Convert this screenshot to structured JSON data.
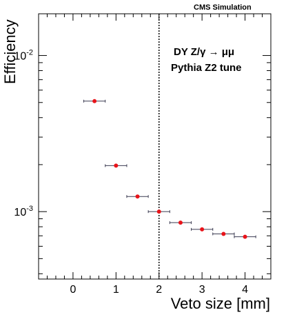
{
  "header": {
    "label": "CMS Simulation"
  },
  "chart_data": {
    "type": "scatter",
    "xlabel": "Veto size [mm]",
    "ylabel": "Efficiency",
    "xlim": [
      -0.8,
      4.6
    ],
    "ylim": [
      0.00037,
      0.0185
    ],
    "y_scale": "log",
    "grid": false,
    "x_ticks": [
      0,
      1,
      2,
      3,
      4
    ],
    "x_tick_labels": [
      "0",
      "1",
      "2",
      "3",
      "4"
    ],
    "y_major_ticks": [
      0.001,
      0.01
    ],
    "y_tick_labels": [
      {
        "base": "10",
        "exp": "-3"
      },
      {
        "base": "10",
        "exp": "-2"
      }
    ],
    "points": [
      {
        "x": 0.5,
        "y": 0.0051,
        "xerr": 0.25
      },
      {
        "x": 1.0,
        "y": 0.00197,
        "xerr": 0.25
      },
      {
        "x": 1.5,
        "y": 0.00125,
        "xerr": 0.25
      },
      {
        "x": 2.0,
        "y": 0.001,
        "xerr": 0.25
      },
      {
        "x": 2.5,
        "y": 0.00085,
        "xerr": 0.25
      },
      {
        "x": 3.0,
        "y": 0.00077,
        "xerr": 0.25
      },
      {
        "x": 3.5,
        "y": 0.00072,
        "xerr": 0.25
      },
      {
        "x": 4.0,
        "y": 0.00069,
        "xerr": 0.25
      }
    ],
    "vertical_line": {
      "x": 2.0,
      "style": "dashed"
    },
    "annotations": [
      "DY Z/γ → μμ",
      "Pythia Z2 tune"
    ]
  }
}
